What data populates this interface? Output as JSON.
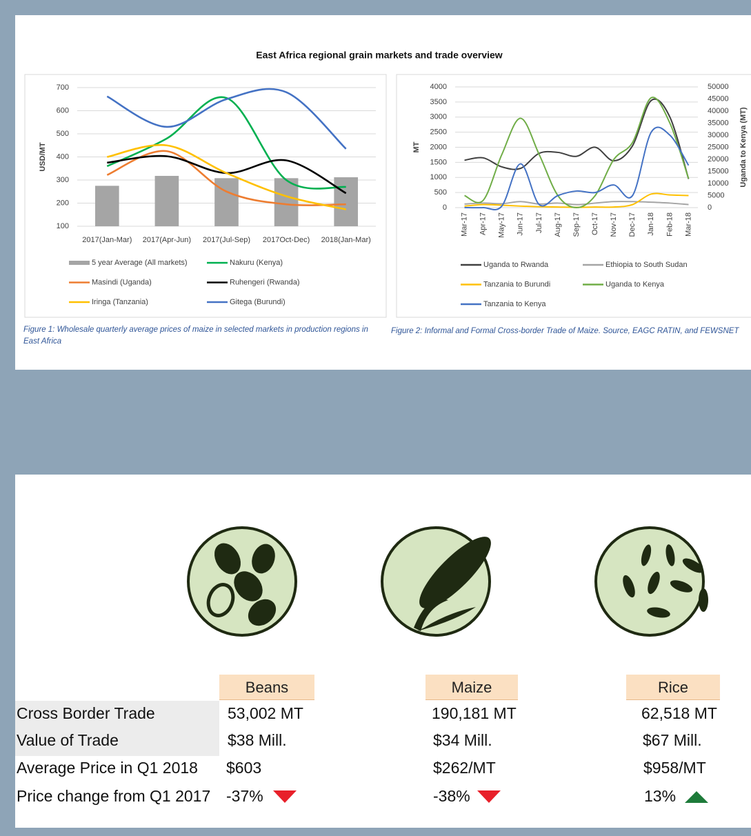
{
  "title": "East Africa regional grain markets and trade overview",
  "chart_data": [
    {
      "type": "combo",
      "ylabel": "USD/MT",
      "categories": [
        "2017(Jan-Mar)",
        "2017(Apr-Jun)",
        "2017(Jul-Sep)",
        "2017Oct-Dec)",
        "2018(Jan-Mar)"
      ],
      "ylim": [
        100,
        700
      ],
      "yticks": [
        100,
        200,
        300,
        400,
        500,
        600,
        700
      ],
      "grid": true,
      "smooth": true,
      "series": [
        {
          "name": "5 year Average (All markets)",
          "type": "bar",
          "color": "#a5a5a5",
          "values": [
            275,
            318,
            308,
            308,
            312
          ]
        },
        {
          "name": "Nakuru (Kenya)",
          "type": "line",
          "color": "#00b050",
          "values": [
            360,
            480,
            655,
            300,
            270
          ]
        },
        {
          "name": "Masindi (Uganda)",
          "type": "line",
          "color": "#ed7d31",
          "values": [
            322,
            425,
            250,
            195,
            195
          ]
        },
        {
          "name": "Ruhengeri (Rwanda)",
          "type": "line",
          "color": "#000000",
          "values": [
            375,
            403,
            330,
            385,
            243
          ]
        },
        {
          "name": "Iringa (Tanzania)",
          "type": "line",
          "color": "#ffc000",
          "values": [
            400,
            450,
            330,
            230,
            173
          ]
        },
        {
          "name": "Gitega (Burundi)",
          "type": "line",
          "color": "#4472c4",
          "values": [
            662,
            530,
            650,
            680,
            435
          ]
        }
      ],
      "caption": "Figure 1: Wholesale quarterly average prices of maize in selected markets in production regions in East Africa"
    },
    {
      "type": "line",
      "ylabel": "MT",
      "y2label": "Uganda to Kenya (MT)",
      "categories": [
        "Mar-17",
        "Apr-17",
        "May-17",
        "Jun-17",
        "Jul-17",
        "Aug-17",
        "Sep-17",
        "Oct-17",
        "Nov-17",
        "Dec-17",
        "Jan-18",
        "Feb-18",
        "Mar-18"
      ],
      "ylim": [
        0,
        4000
      ],
      "yticks": [
        0,
        500,
        1000,
        1500,
        2000,
        2500,
        3000,
        3500,
        4000
      ],
      "y2lim": [
        0,
        50000
      ],
      "y2ticks": [
        0,
        5000,
        10000,
        15000,
        20000,
        25000,
        30000,
        35000,
        40000,
        45000,
        50000
      ],
      "grid": true,
      "smooth": true,
      "series": [
        {
          "name": "Uganda to Rwanda",
          "color": "#404040",
          "values": [
            1570,
            1650,
            1350,
            1300,
            1800,
            1830,
            1700,
            2000,
            1550,
            2050,
            3550,
            3000,
            950
          ]
        },
        {
          "name": "Ethiopia to South Sudan",
          "color": "#a5a5a5",
          "values": [
            120,
            150,
            130,
            200,
            120,
            150,
            100,
            150,
            200,
            200,
            180,
            150,
            100
          ]
        },
        {
          "name": "Tanzania to Burundi",
          "color": "#ffc000",
          "values": [
            50,
            100,
            80,
            50,
            30,
            20,
            10,
            20,
            20,
            100,
            450,
            420,
            400
          ]
        },
        {
          "name": "Uganda to Kenya",
          "color": "#70ad47",
          "axis": "y2",
          "values": [
            5000,
            3000,
            22000,
            37000,
            22000,
            5000,
            0,
            5000,
            20000,
            27000,
            45500,
            35000,
            12000
          ]
        },
        {
          "name": "Tanzania to Kenya",
          "color": "#4472c4",
          "values": [
            0,
            0,
            50,
            1450,
            100,
            400,
            550,
            500,
            750,
            400,
            2500,
            2400,
            1400
          ]
        }
      ],
      "caption": "Figure 2: Informal and Formal Cross-border Trade of Maize. Source, EAGC RATIN, and FEWSNET"
    }
  ],
  "table": {
    "columns": [
      "Beans",
      "Maize",
      "Rice"
    ],
    "rows": [
      {
        "label": "Cross Border Trade",
        "values": [
          "53,002 MT",
          "190,181 MT",
          "62,518 MT"
        ]
      },
      {
        "label": "Value of Trade",
        "values": [
          "$38 Mill.",
          "$34 Mill.",
          "$67 Mill."
        ]
      },
      {
        "label": "Average Price in Q1 2018",
        "values": [
          "$603",
          "$262/MT",
          "$958/MT"
        ]
      },
      {
        "label": "Price change from Q1 2017",
        "values": [
          "-37%",
          "-38%",
          "13%"
        ]
      }
    ]
  }
}
